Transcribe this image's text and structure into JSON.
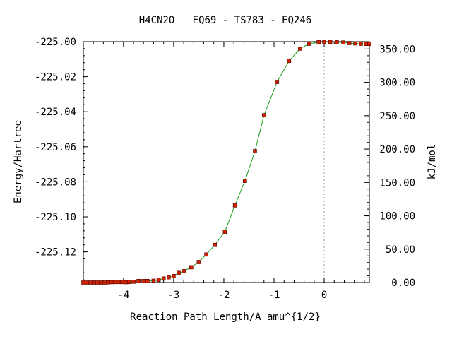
{
  "chart_data": {
    "type": "line",
    "title": "H4CN2O   EQ69 - TS783 - EQ246",
    "xlabel": "Reaction Path Length/A amu^{1/2}",
    "ylabel": "Energy/Hartree",
    "y2label": "kJ/mol",
    "xlim": [
      -4.8,
      0.9
    ],
    "ylim": [
      -225.1375,
      -225.0
    ],
    "y2lim": [
      0.0,
      360.995
    ],
    "x_ticks": [
      -4,
      -3,
      -2,
      -1,
      0
    ],
    "x_tick_labels": [
      "-4",
      "-3",
      "-2",
      "-1",
      "0"
    ],
    "y_ticks": [
      -225.0,
      -225.02,
      -225.04,
      -225.06,
      -225.08,
      -225.1,
      -225.12
    ],
    "y_tick_labels": [
      "-225.00",
      "-225.02",
      "-225.04",
      "-225.06",
      "-225.08",
      "-225.10",
      "-225.12"
    ],
    "y2_ticks": [
      350,
      300,
      250,
      200,
      150,
      100,
      50,
      0
    ],
    "y2_tick_labels": [
      "350.00",
      "300.00",
      "250.00",
      "200.00",
      "150.00",
      "100.00",
      "50.00",
      "0.00"
    ],
    "ts_marker_x": 0.0,
    "grid": false,
    "line_color": "#1a9e1a",
    "marker_color": "#cc2200",
    "ts_line_color": "#999999",
    "series": [
      {
        "x": [
          -4.8,
          -4.73,
          -4.66,
          -4.59,
          -4.52,
          -4.45,
          -4.38,
          -4.31,
          -4.24,
          -4.17,
          -4.1,
          -4.03,
          -3.96,
          -3.89,
          -3.8,
          -3.7,
          -3.6,
          -3.52,
          -3.4,
          -3.3,
          -3.2,
          -3.1,
          -3.0,
          -2.9,
          -2.8,
          -2.65,
          -2.5,
          -2.35,
          -2.18,
          -1.98,
          -1.78,
          -1.58,
          -1.38,
          -1.2,
          -0.94,
          -0.7,
          -0.48,
          -0.3,
          -0.11,
          0.0,
          0.12,
          0.25,
          0.38,
          0.5,
          0.62,
          0.73,
          0.83,
          0.9
        ],
        "y": [
          -225.1375,
          -225.1375,
          -225.1375,
          -225.1375,
          -225.1375,
          -225.1375,
          -225.1375,
          -225.1374,
          -225.1373,
          -225.1372,
          -225.1372,
          -225.1372,
          -225.1373,
          -225.1372,
          -225.137,
          -225.1366,
          -225.1366,
          -225.1366,
          -225.1365,
          -225.136,
          -225.1352,
          -225.1345,
          -225.1338,
          -225.132,
          -225.131,
          -225.1288,
          -225.1258,
          -225.1215,
          -225.116,
          -225.1085,
          -225.0935,
          -225.0795,
          -225.0625,
          -225.042,
          -225.023,
          -225.011,
          -225.004,
          -225.0012,
          -225.0003,
          -225.0002,
          -225.0002,
          -225.0003,
          -225.0005,
          -225.0008,
          -225.001,
          -225.0012,
          -225.0013,
          -225.0013
        ]
      }
    ]
  }
}
